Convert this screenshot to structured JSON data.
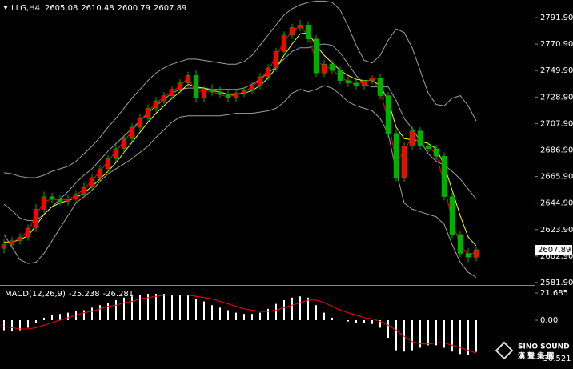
{
  "chart_data": [
    {
      "type": "candlestick",
      "title": "LLG,H4",
      "header_values": [
        2605.08,
        2610.48,
        2600.79,
        2607.89
      ],
      "last_price": 2607.89,
      "ylim": [
        2580.6,
        2805.9
      ],
      "yticks": [
        {
          "value": 2791.9,
          "label": "2791.90"
        },
        {
          "value": 2770.9,
          "label": "2770.90"
        },
        {
          "value": 2749.9,
          "label": "2749.90"
        },
        {
          "value": 2728.9,
          "label": "2728.90"
        },
        {
          "value": 2707.9,
          "label": "2707.90"
        },
        {
          "value": 2686.9,
          "label": "2686.90"
        },
        {
          "value": 2665.9,
          "label": "2665.90"
        },
        {
          "value": 2644.9,
          "label": "2644.90"
        },
        {
          "value": 2623.9,
          "label": "2623.90"
        },
        {
          "value": 2602.9,
          "label": "2602.90"
        },
        {
          "value": 2581.9,
          "label": "2581.90"
        }
      ],
      "up_color": "#ff0000",
      "down_color": "#00b000",
      "wick_color": "#00b000",
      "open": [
        2609,
        2612,
        2615,
        2618,
        2625,
        2640,
        2650,
        2648,
        2646,
        2648,
        2652,
        2658,
        2665,
        2672,
        2680,
        2688,
        2696,
        2705,
        2712,
        2720,
        2726,
        2730,
        2735,
        2740,
        2746,
        2728,
        2735,
        2733,
        2731,
        2728,
        2732,
        2734,
        2738,
        2745,
        2752,
        2765,
        2778,
        2784,
        2786,
        2775,
        2748,
        2755,
        2750,
        2742,
        2740,
        2738,
        2742,
        2744,
        2730,
        2700,
        2665,
        2690,
        2702,
        2690,
        2688,
        2682,
        2650,
        2620,
        2605,
        2602
      ],
      "high": [
        2616,
        2618,
        2621,
        2628,
        2644,
        2654,
        2653,
        2651,
        2651,
        2655,
        2661,
        2668,
        2675,
        2683,
        2691,
        2699,
        2708,
        2715,
        2723,
        2729,
        2733,
        2738,
        2743,
        2749,
        2750,
        2738,
        2739,
        2737,
        2735,
        2735,
        2737,
        2741,
        2748,
        2755,
        2768,
        2781,
        2787,
        2790,
        2789,
        2778,
        2758,
        2758,
        2753,
        2745,
        2743,
        2741,
        2746,
        2747,
        2733,
        2703,
        2693,
        2706,
        2705,
        2693,
        2691,
        2685,
        2653,
        2623,
        2609,
        2610
      ],
      "low": [
        2605,
        2609,
        2612,
        2615,
        2622,
        2637,
        2645,
        2643,
        2643,
        2645,
        2649,
        2655,
        2662,
        2669,
        2677,
        2685,
        2693,
        2702,
        2709,
        2717,
        2723,
        2727,
        2732,
        2737,
        2725,
        2725,
        2730,
        2728,
        2725,
        2725,
        2729,
        2731,
        2735,
        2742,
        2749,
        2762,
        2775,
        2781,
        2772,
        2745,
        2745,
        2747,
        2739,
        2737,
        2735,
        2735,
        2739,
        2727,
        2697,
        2662,
        2662,
        2687,
        2687,
        2685,
        2679,
        2647,
        2617,
        2602,
        2598,
        2599
      ],
      "close": [
        2612,
        2615,
        2618,
        2625,
        2640,
        2650,
        2648,
        2646,
        2648,
        2652,
        2658,
        2665,
        2672,
        2680,
        2688,
        2696,
        2705,
        2712,
        2720,
        2726,
        2730,
        2735,
        2740,
        2746,
        2728,
        2735,
        2733,
        2731,
        2728,
        2732,
        2734,
        2738,
        2745,
        2752,
        2765,
        2778,
        2784,
        2786,
        2775,
        2748,
        2755,
        2750,
        2742,
        2740,
        2738,
        2742,
        2744,
        2730,
        2700,
        2665,
        2690,
        2702,
        2690,
        2688,
        2682,
        2650,
        2620,
        2605,
        2602,
        2607.89
      ],
      "lines": [
        {
          "color": "#a0a0a0",
          "values": [
            2669,
            2668,
            2666,
            2665,
            2665,
            2667,
            2670,
            2672,
            2674,
            2678,
            2684,
            2690,
            2697,
            2705,
            2712,
            2720,
            2728,
            2735,
            2742,
            2748,
            2752,
            2755,
            2757,
            2759,
            2759,
            2758,
            2757,
            2756,
            2755,
            2755,
            2757,
            2762,
            2770,
            2778,
            2786,
            2794,
            2799,
            2802,
            2804,
            2805,
            2805,
            2804,
            2798,
            2785,
            2770,
            2758,
            2756,
            2762,
            2774,
            2783,
            2780,
            2768,
            2750,
            2732,
            2723,
            2722,
            2728,
            2730,
            2722,
            2710
          ]
        },
        {
          "color": "#a0a0a0",
          "values": [
            2644,
            2639,
            2633,
            2631,
            2631,
            2636,
            2642,
            2648,
            2654,
            2661,
            2667,
            2672,
            2679,
            2686,
            2692,
            2698,
            2704,
            2710,
            2716,
            2722,
            2727,
            2732,
            2735,
            2736,
            2736,
            2736,
            2735,
            2735,
            2735,
            2735,
            2736,
            2739,
            2743,
            2748,
            2753,
            2759,
            2765,
            2768,
            2768,
            2770,
            2771,
            2770,
            2764,
            2755,
            2746,
            2739,
            2737,
            2737,
            2737,
            2726,
            2712,
            2704,
            2694,
            2684,
            2678,
            2675,
            2670,
            2664,
            2656,
            2648
          ]
        },
        {
          "color": "#a0a0a0",
          "values": [
            2620,
            2610,
            2600,
            2597,
            2598,
            2605,
            2615,
            2625,
            2635,
            2645,
            2650,
            2655,
            2662,
            2668,
            2672,
            2676,
            2680,
            2685,
            2690,
            2697,
            2703,
            2709,
            2713,
            2714,
            2714,
            2714,
            2714,
            2714,
            2715,
            2716,
            2716,
            2716,
            2717,
            2718,
            2720,
            2725,
            2732,
            2735,
            2733,
            2735,
            2738,
            2736,
            2731,
            2725,
            2722,
            2720,
            2718,
            2712,
            2700,
            2670,
            2645,
            2640,
            2638,
            2636,
            2634,
            2628,
            2612,
            2598,
            2590,
            2586
          ]
        },
        {
          "color": "#ffff00",
          "values": [
            2614,
            2614,
            2616,
            2619,
            2627,
            2636,
            2642,
            2645,
            2647,
            2649,
            2653,
            2658,
            2664,
            2670,
            2677,
            2685,
            2693,
            2701,
            2709,
            2716,
            2722,
            2728,
            2733,
            2739,
            2737,
            2736,
            2734,
            2733,
            2731,
            2731,
            2732,
            2734,
            2738,
            2744,
            2752,
            2762,
            2771,
            2779,
            2780,
            2770,
            2762,
            2756,
            2750,
            2746,
            2743,
            2742,
            2742,
            2738,
            2726,
            2705,
            2696,
            2695,
            2694,
            2692,
            2688,
            2675,
            2655,
            2635,
            2618,
            2611
          ]
        },
        {
          "color": "#ff0000",
          "values": [
            2613,
            2614,
            2617,
            2623,
            2635,
            2646,
            2648,
            2647,
            2648,
            2651,
            2656,
            2663,
            2670,
            2678,
            2686,
            2694,
            2702,
            2710,
            2717,
            2724,
            2729,
            2733,
            2738,
            2744,
            2733,
            2734,
            2733,
            2731,
            2729,
            2731,
            2733,
            2737,
            2743,
            2750,
            2761,
            2773,
            2781,
            2785,
            2778,
            2757,
            2754,
            2751,
            2745,
            2741,
            2739,
            2741,
            2743,
            2734,
            2710,
            2678,
            2686,
            2698,
            2692,
            2689,
            2684,
            2660,
            2630,
            2612,
            2604,
            2606
          ]
        }
      ]
    },
    {
      "type": "macd",
      "title": "MACD(12,26,9)",
      "header_values": [
        -25.238,
        -26.281
      ],
      "ylim": [
        -38.9,
        26.8
      ],
      "yticks": [
        21.685,
        {
          "value": 0,
          "label": "0.00"
        },
        -30.521
      ],
      "histogram_color": "#ffffff",
      "signal_color": "#ff0000",
      "histogram": [
        -8,
        -9,
        -8,
        -6,
        -2,
        2,
        4,
        5,
        6,
        7,
        8,
        10,
        12,
        14,
        16,
        18,
        19,
        20,
        21,
        21,
        21,
        20,
        20,
        20,
        17,
        15,
        12,
        10,
        8,
        6,
        5,
        5,
        6,
        9,
        13,
        16,
        18,
        19,
        18,
        12,
        6,
        2,
        0,
        -1,
        -2,
        -2,
        -3,
        -6,
        -14,
        -24,
        -25,
        -24,
        -22,
        -20,
        -20,
        -22,
        -25,
        -27,
        -28,
        -25.238
      ],
      "signal": [
        -5,
        -6,
        -7,
        -7,
        -6,
        -4,
        -2,
        0,
        2,
        4,
        6,
        7,
        9,
        11,
        12,
        14,
        15,
        17,
        18,
        19,
        20,
        20,
        20,
        20,
        19,
        18,
        17,
        15,
        13,
        11,
        9,
        8,
        7,
        7,
        8,
        10,
        12,
        14,
        16,
        16,
        14,
        11,
        8,
        6,
        4,
        2,
        1,
        -1,
        -4,
        -8,
        -13,
        -17,
        -19,
        -19,
        -18,
        -18,
        -20,
        -22,
        -24,
        -26.281
      ]
    }
  ],
  "watermark": {
    "en": "SINO SOUND",
    "zh": "漢 聲 集 團"
  }
}
